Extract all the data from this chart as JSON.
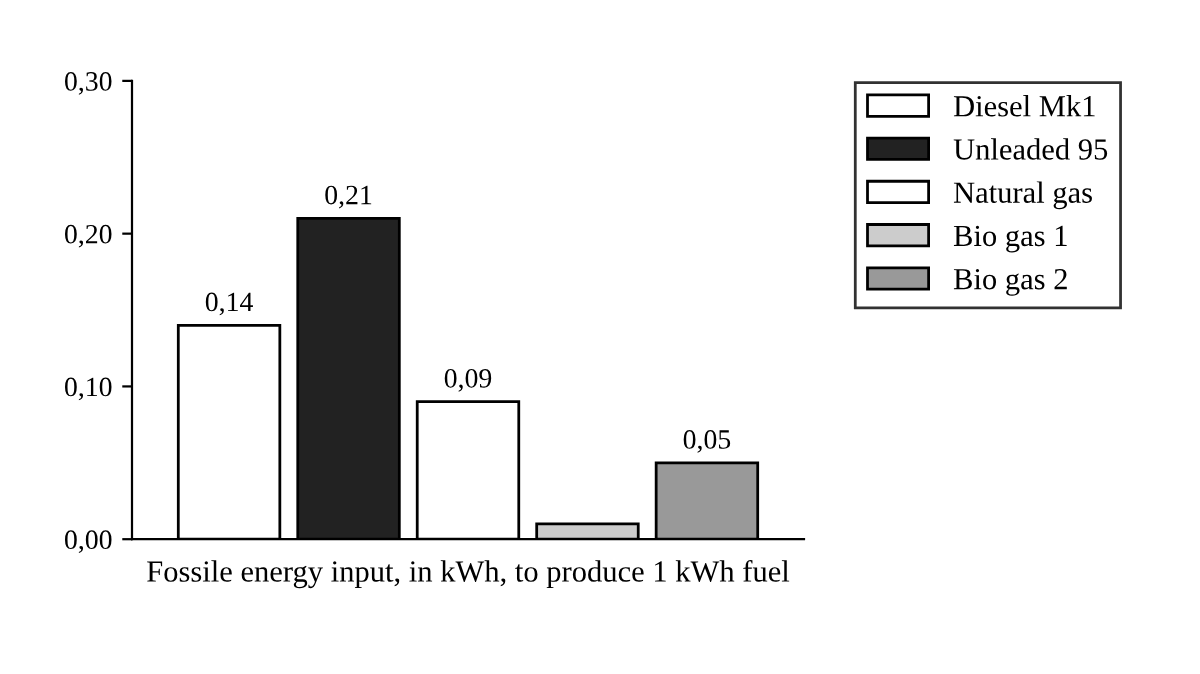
{
  "chart_data": {
    "type": "bar",
    "xlabel": "Fossile energy input, in kWh, to produce 1 kWh fuel",
    "categories": [
      null
    ],
    "series": [
      {
        "name": "Diesel Mk1",
        "color": "#ffffff",
        "values": [
          0.14
        ],
        "value_labels": [
          "0,14"
        ]
      },
      {
        "name": "Unleaded 95",
        "color": "#222222",
        "values": [
          0.21
        ],
        "value_labels": [
          "0,21"
        ]
      },
      {
        "name": "Natural gas",
        "color": "#ffffff",
        "values": [
          0.09
        ],
        "value_labels": [
          "0,09"
        ]
      },
      {
        "name": "Bio gas 1",
        "color": "#cccccc",
        "values": [
          0.01
        ],
        "value_labels": [
          null
        ]
      },
      {
        "name": "Bio gas 2",
        "color": "#999999",
        "values": [
          0.05
        ],
        "value_labels": [
          "0,05"
        ]
      }
    ],
    "ylim": [
      0,
      0.3
    ],
    "yticks": [
      {
        "value": 0,
        "label": "0,00"
      },
      {
        "value": 0.1,
        "label": "0,10"
      },
      {
        "value": 0.2,
        "label": "0,20"
      },
      {
        "value": 0.3,
        "label": "0,30"
      }
    ],
    "grid": false,
    "legend": "right"
  }
}
